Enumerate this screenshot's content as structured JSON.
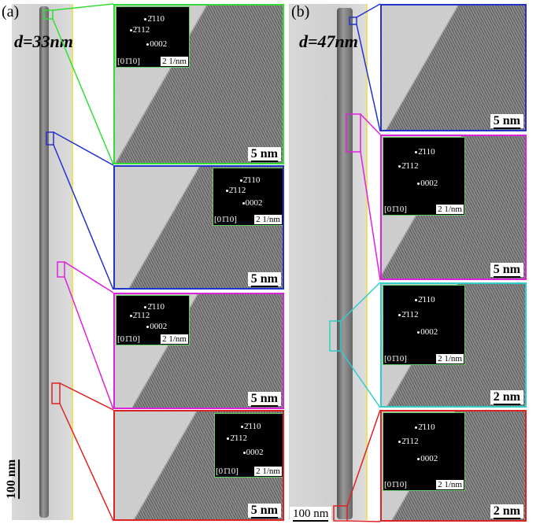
{
  "panels": [
    {
      "label": "(a)",
      "diameter": "d=33nm",
      "scale_bar": "100 nm",
      "insets": [
        {
          "scale_bar": "5 nm",
          "saed": {
            "spots": [
              "2̄110",
              "2̄112",
              "0002"
            ],
            "zone_axis": "[01̄10]",
            "scale": "2 1/nm"
          }
        },
        {
          "scale_bar": "5 nm",
          "saed": {
            "spots": [
              "2̄110",
              "2̄112",
              "0002"
            ],
            "zone_axis": "[01̄10]",
            "scale": "2 1/nm"
          }
        },
        {
          "scale_bar": "5 nm",
          "saed": {
            "spots": [
              "2̄110",
              "2̄112",
              "0002"
            ],
            "zone_axis": "[01̄10]",
            "scale": "2 1/nm"
          }
        },
        {
          "scale_bar": "5 nm",
          "saed": {
            "spots": [
              "2̄110",
              "2̄112",
              "0002"
            ],
            "zone_axis": "[01̄10]",
            "scale": "2 1/nm"
          }
        }
      ]
    },
    {
      "label": "(b)",
      "diameter": "d=47nm",
      "scale_bar": "100 nm",
      "insets": [
        {
          "scale_bar": "5 nm"
        },
        {
          "scale_bar": "5 nm",
          "saed": {
            "spots": [
              "2̄110",
              "2̄112",
              "0002"
            ],
            "zone_axis": "[01̄10]",
            "scale": "2 1/nm"
          }
        },
        {
          "scale_bar": "2 nm",
          "saed": {
            "spots": [
              "2̄110",
              "2̄112",
              "0002"
            ],
            "zone_axis": "[01̄10]",
            "scale": "2 1/nm"
          }
        },
        {
          "scale_bar": "2 nm",
          "saed": {
            "spots": [
              "2̄110",
              "2̄112",
              "0002"
            ],
            "zone_axis": "[01̄10]",
            "scale": "2 1/nm"
          }
        }
      ]
    }
  ]
}
